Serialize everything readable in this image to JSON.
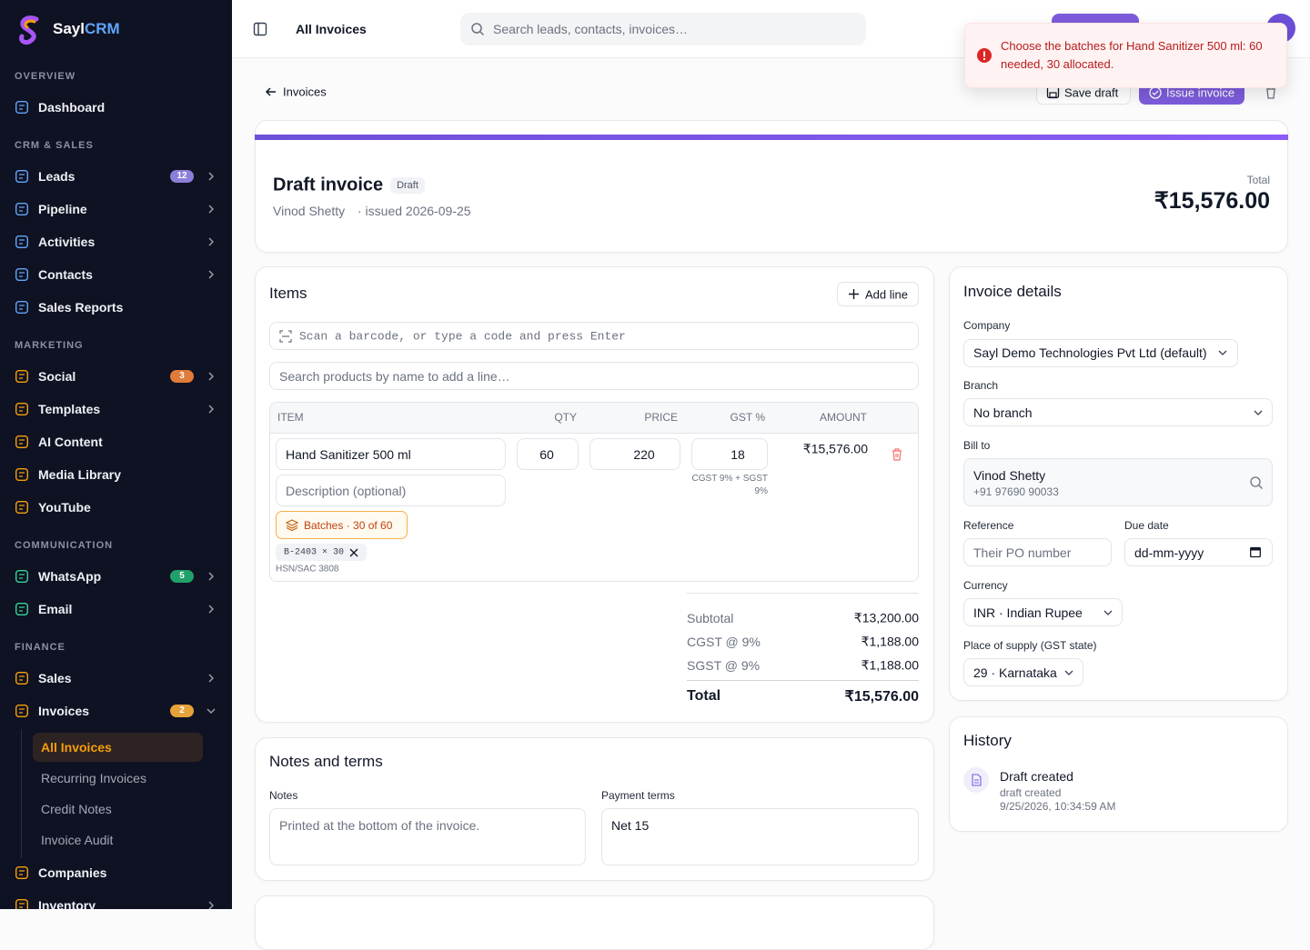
{
  "sidebar": {
    "brand": {
      "name": "Sayl",
      "accent": "CRM"
    },
    "sections": [
      {
        "title": "OVERVIEW",
        "icon_color": "#60a5fa",
        "items": [
          {
            "label": "Dashboard"
          }
        ]
      },
      {
        "title": "CRM & SALES",
        "icon_color": "#60a5fa",
        "items": [
          {
            "label": "Leads",
            "badge": "12",
            "badge_color": "#8b7fd9",
            "chevron": true
          },
          {
            "label": "Pipeline",
            "chevron": true
          },
          {
            "label": "Activities",
            "chevron": true
          },
          {
            "label": "Contacts",
            "chevron": true
          },
          {
            "label": "Sales Reports"
          }
        ]
      },
      {
        "title": "MARKETING",
        "icon_color": "#f59e0b",
        "items": [
          {
            "label": "Social",
            "badge": "3",
            "badge_color": "#e07b39",
            "chevron": true
          },
          {
            "label": "Templates",
            "chevron": true
          },
          {
            "label": "AI Content"
          },
          {
            "label": "Media Library"
          },
          {
            "label": "YouTube"
          }
        ]
      },
      {
        "title": "COMMUNICATION",
        "icon_color": "#34d399",
        "items": [
          {
            "label": "WhatsApp",
            "badge": "5",
            "badge_color": "#22a06b",
            "chevron": true
          },
          {
            "label": "Email",
            "chevron": true
          }
        ]
      },
      {
        "title": "FINANCE",
        "icon_color": "#f59e0b",
        "items": [
          {
            "label": "Sales",
            "chevron": true
          },
          {
            "label": "Invoices",
            "badge": "2",
            "badge_color": "#e8a23a",
            "chevron": true,
            "expanded": true,
            "children": [
              {
                "label": "All Invoices",
                "active": true
              },
              {
                "label": "Recurring Invoices"
              },
              {
                "label": "Credit Notes"
              },
              {
                "label": "Invoice Audit"
              }
            ]
          },
          {
            "label": "Companies"
          },
          {
            "label": "Inventory",
            "chevron": true
          }
        ]
      }
    ]
  },
  "topbar": {
    "title": "All Invoices",
    "search_placeholder": "Search leads, contacts, invoices…"
  },
  "toast": {
    "message": "Choose the batches for Hand Sanitizer 500 ml: 60 needed, 30 allocated."
  },
  "page": {
    "back": "Invoices",
    "save_draft": "Save draft",
    "issue_invoice": "Issue invoice"
  },
  "header": {
    "title": "Draft invoice",
    "status": "Draft",
    "customer": "Vinod Shetty",
    "issued": "· issued 2026-09-25",
    "total_label": "Total",
    "total": "₹15,576.00"
  },
  "items": {
    "title": "Items",
    "add_line": "Add line",
    "scan_placeholder": "Scan a barcode, or type a code and press Enter",
    "search_placeholder": "Search products by name to add a line…",
    "columns": [
      "ITEM",
      "QTY",
      "PRICE",
      "GST %",
      "AMOUNT"
    ],
    "rows": [
      {
        "name": "Hand Sanitizer 500 ml",
        "qty": 60,
        "price": 220,
        "gst": 18,
        "amount": "₹15,576.00",
        "description_placeholder": "Description (optional)",
        "tax_note": "CGST 9% + SGST 9%",
        "batches": "Batches · 30 of 60",
        "batch_chips": [
          "B-2403 × 30"
        ],
        "hsn": "HSN/SAC 3808"
      }
    ],
    "totals": [
      {
        "label": "Subtotal",
        "value": "₹13,200.00"
      },
      {
        "label": "CGST @ 9%",
        "value": "₹1,188.00"
      },
      {
        "label": "SGST @ 9%",
        "value": "₹1,188.00"
      },
      {
        "label": "Total",
        "value": "₹15,576.00"
      }
    ]
  },
  "notes": {
    "title": "Notes and terms",
    "notes_label": "Notes",
    "notes_placeholder": "Printed at the bottom of the invoice.",
    "terms_label": "Payment terms",
    "terms": "Net 15"
  },
  "details": {
    "title": "Invoice details",
    "company_label": "Company",
    "company": "Sayl Demo Technologies Pvt Ltd (default)",
    "branch_label": "Branch",
    "branch": "No branch",
    "bill_to_label": "Bill to",
    "bill_to_name": "Vinod Shetty",
    "bill_to_phone": "+91 97690 90033",
    "reference_label": "Reference",
    "reference_placeholder": "Their PO number",
    "due_date_label": "Due date",
    "due_date_placeholder": "dd-mm-yyyy",
    "currency_label": "Currency",
    "currency": "INR · Indian Rupee",
    "supply_label": "Place of supply (GST state)",
    "supply": "29 · Karnataka"
  },
  "history": {
    "title": "History",
    "events": [
      {
        "title": "Draft created",
        "detail": "draft created",
        "time": "9/25/2026, 10:34:59 AM"
      }
    ]
  }
}
